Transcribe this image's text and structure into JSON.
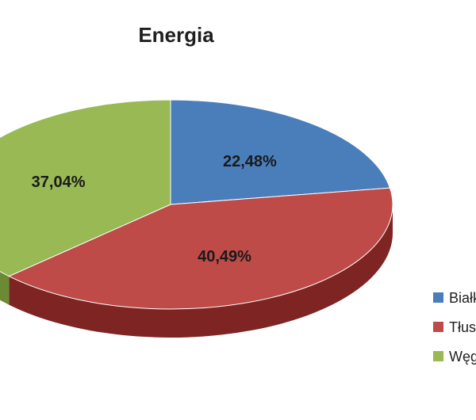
{
  "chart_data": {
    "type": "pie",
    "title": "Energia",
    "labels": [
      "Białk",
      "Tłus",
      "Węg"
    ],
    "values": [
      22.48,
      40.49,
      37.04
    ],
    "data_labels": [
      "22,48%",
      "40,49%",
      "37,04%"
    ],
    "colors": [
      "#4a7ebb",
      "#be4b48",
      "#98b954"
    ],
    "side_colors": [
      "#2f5a8f",
      "#7e2422",
      "#6b8a33"
    ],
    "style": "3d",
    "legend_position": "right"
  }
}
